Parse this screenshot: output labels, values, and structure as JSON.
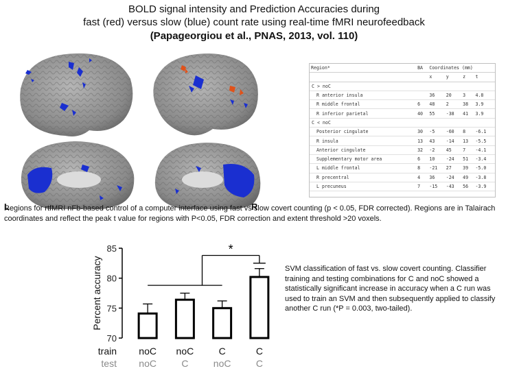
{
  "header": {
    "line1": "BOLD signal intensity and Prediction Accuracies during",
    "line2": "fast (red) versus slow (blue) count rate using real-time fMRI neurofeedback",
    "line3": "(Papageorgiou et al., PNAS, 2013, vol. 110)"
  },
  "brain": {
    "left_label": "L",
    "right_label": "R",
    "colors": {
      "fast": "#e0521a",
      "slow": "#1a2fd0",
      "cortex": "#8c8c8c"
    }
  },
  "region_table": {
    "columns": [
      "Region*",
      "BA",
      "Coordinates (mm)"
    ],
    "subcolumns": [
      "x",
      "y",
      "z",
      "t"
    ],
    "groups": [
      {
        "label": "C > noC",
        "rows": [
          {
            "region": "R anterior insula",
            "ba": "",
            "x": "36",
            "y": "20",
            "z": "3",
            "t": "4.8"
          },
          {
            "region": "R middle frontal",
            "ba": "6",
            "x": "48",
            "y": "2",
            "z": "38",
            "t": "3.9"
          },
          {
            "region": "R inferior parietal",
            "ba": "40",
            "x": "55",
            "y": "-38",
            "z": "41",
            "t": "3.9"
          }
        ]
      },
      {
        "label": "C < noC",
        "rows": [
          {
            "region": "Posterior cingulate",
            "ba": "30",
            "x": "-5",
            "y": "-60",
            "z": "8",
            "t": "-6.1"
          },
          {
            "region": "R insula",
            "ba": "13",
            "x": "43",
            "y": "-14",
            "z": "13",
            "t": "-5.5"
          },
          {
            "region": "Anterior cingulate",
            "ba": "32",
            "x": "-2",
            "y": "45",
            "z": "7",
            "t": "-4.1"
          },
          {
            "region": "Supplementary motor area",
            "ba": "6",
            "x": "10",
            "y": "-24",
            "z": "51",
            "t": "-3.4"
          },
          {
            "region": "L middle frontal",
            "ba": "8",
            "x": "-21",
            "y": "27",
            "z": "39",
            "t": "-5.0"
          },
          {
            "region": "R precentral",
            "ba": "4",
            "x": "36",
            "y": "-24",
            "z": "49",
            "t": "-3.8"
          },
          {
            "region": "L precuneus",
            "ba": "7",
            "x": "-15",
            "y": "-43",
            "z": "56",
            "t": "-3.9"
          }
        ]
      }
    ]
  },
  "caption": "Regions for rtfMRI nFb-based control of a computer interface using fast vs slow covert counting (p < 0.05, FDR corrected). Regions are in Talairach coordinates and reflect the peak t value for regions with P<0.05, FDR correction and extent threshold >20 voxels.",
  "chart_data": {
    "type": "bar",
    "categories": [
      "noC/noC",
      "noC/C",
      "C/noC",
      "C/C"
    ],
    "train": [
      "noC",
      "noC",
      "C",
      "C"
    ],
    "test": [
      "noC",
      "C",
      "noC",
      "C"
    ],
    "row_labels": {
      "train": "train",
      "test": "test"
    },
    "values": [
      74.1,
      76.4,
      75.0,
      80.2
    ],
    "errors": [
      1.6,
      1.1,
      1.2,
      1.4
    ],
    "ylabel": "Percent accuracy",
    "ylim": [
      70,
      85
    ],
    "yticks": [
      70,
      75,
      80,
      85
    ],
    "significance": "*",
    "colors": {
      "bar_edge": "#000000",
      "train_text": "#111111",
      "test_text": "#8a8a8a"
    }
  },
  "svm_text": "SVM classification of fast vs. slow covert counting. Classifier training and testing combinations for C and noC showed a statistically significant increase in accuracy when a C run was used to train an SVM and then subsequently applied to classify another C run (*P = 0.003, two-tailed)."
}
